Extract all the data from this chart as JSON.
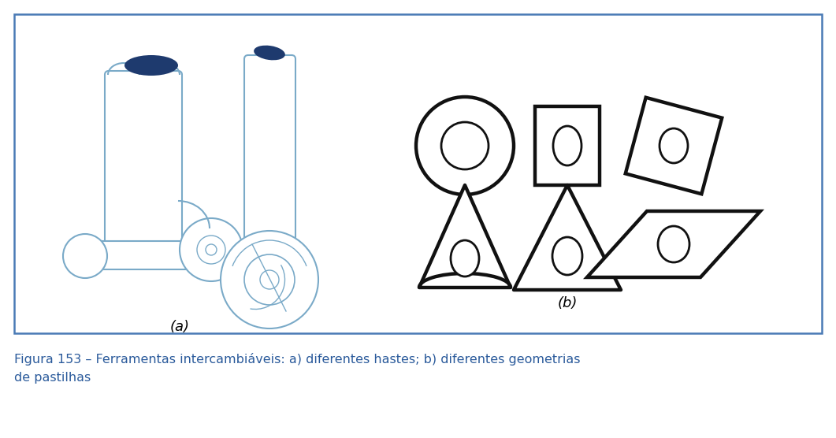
{
  "box_color": "#4a7ab5",
  "title_color": "#2a5a9b",
  "caption_line1": "Figura 153 – Ferramentas intercambiáveis: a) diferentes hastes; b) diferentes geometrias",
  "caption_line2": "de pastilhas",
  "caption_fontsize": 11.5,
  "label_a": "(a)",
  "label_b": "(b)",
  "dark_blue": "#1e3a6e",
  "tool_color": "#7aaac8",
  "outline_color": "#111111",
  "shape_lw": 3.2
}
